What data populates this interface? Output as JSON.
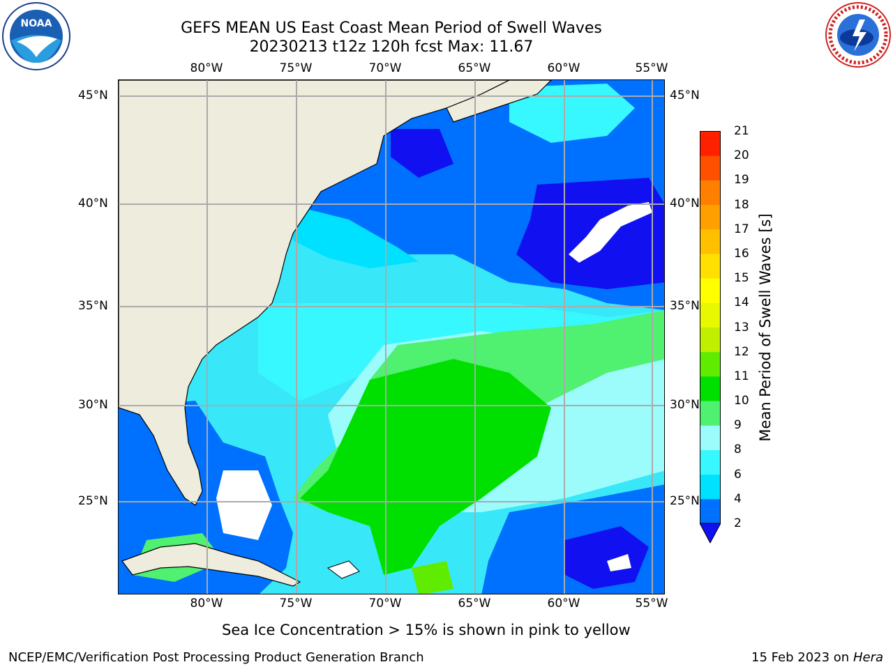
{
  "title_line1": "GEFS MEAN US East Coast Mean Period of Swell Waves",
  "title_line2": "20230213 t12z 120h fcst   Max: 11.67",
  "logos": {
    "left": "noaa-logo",
    "right": "national-weather-service-logo",
    "left_text": "NOAA",
    "right_text": "NATIONAL WEATHER SERVICE"
  },
  "map": {
    "lon_ticks": [
      "80°W",
      "75°W",
      "70°W",
      "65°W",
      "60°W",
      "55°W"
    ],
    "lat_ticks": [
      "45°N",
      "40°N",
      "35°N",
      "30°N",
      "25°N"
    ],
    "land_color": "#eeecdc",
    "grid_color": "#aaaaaa"
  },
  "colorbar": {
    "label": "Mean Period of Swell Waves [s]",
    "tick_labels": [
      "2",
      "4",
      "6",
      "8",
      "9",
      "10",
      "11",
      "12",
      "13",
      "14",
      "15",
      "16",
      "17",
      "18",
      "19",
      "20",
      "21"
    ],
    "colors": [
      "#0070ff",
      "#00e0ff",
      "#38f8ff",
      "#9cfcfc",
      "#50f070",
      "#00e000",
      "#60ec00",
      "#c0f000",
      "#e8f800",
      "#ffff00",
      "#ffe000",
      "#ffc000",
      "#ffa000",
      "#ff8000",
      "#ff5000",
      "#ff2000",
      "#ff0000"
    ],
    "under_color": "#1010f0"
  },
  "note": "Sea Ice Concentration > 15% is shown in pink to yellow",
  "footer_left": "NCEP/EMC/Verification Post Processing Product Generation Branch",
  "footer_date": "15 Feb 2023 on",
  "footer_machine": "Hera"
}
